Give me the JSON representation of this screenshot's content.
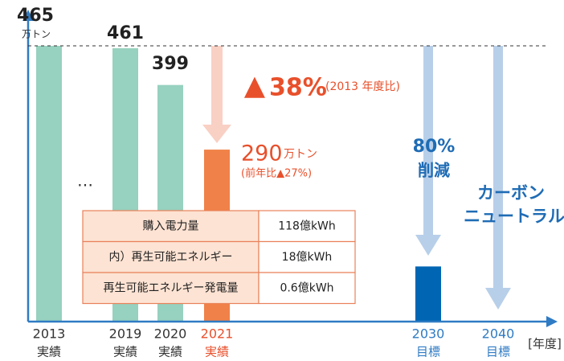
{
  "chart_data": {
    "type": "bar",
    "categories": [
      "2013",
      "2019",
      "2020",
      "2021",
      "2030",
      "2040"
    ],
    "category_notes": [
      "実績",
      "実績",
      "実績",
      "実績",
      "目標",
      "目標"
    ],
    "values": [
      465,
      461,
      399,
      290,
      93,
      null
    ],
    "colors": [
      "#97d1bf",
      "#97d1bf",
      "#97d1bf",
      "#f08148",
      "#0066b3",
      "#0066b3"
    ],
    "label_colors": [
      "#333333",
      "#333333",
      "#333333",
      "#e8502b",
      "#2f7bc4",
      "#2f7bc4"
    ],
    "ylim": [
      0,
      465
    ],
    "yticks": [
      465
    ],
    "y_unit": "万トン",
    "x_unit": "[年度]",
    "annotations": {
      "reduction": "▲",
      "reduction_value": "38%",
      "reduction_note": "(2013 年度比)",
      "unit_2021": "万トン",
      "yoy": "(前年比▲27%)",
      "target_value": "80%",
      "target_text": "削減",
      "neutral_1": "カーボン",
      "neutral_2": "ニュートラル",
      "ellipsis": "…"
    },
    "table": {
      "rows": [
        [
          "購入電力量",
          "118億kWh"
        ],
        [
          "内）再生可能エネルギー",
          "18億kWh"
        ],
        [
          "再生可能エネルギー発電量",
          "0.6億kWh"
        ]
      ]
    }
  }
}
